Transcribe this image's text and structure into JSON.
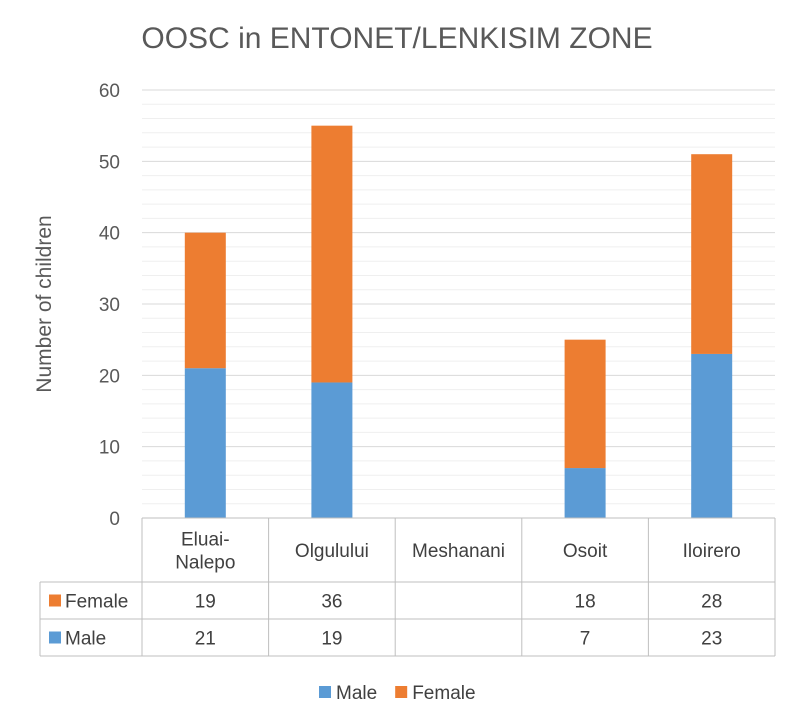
{
  "chart_data": {
    "type": "bar",
    "stacked": true,
    "title": "OOSC in ENTONET/LENKISIM ZONE",
    "ylabel": "Number of children",
    "xlabel": "",
    "ylim": [
      0,
      60
    ],
    "yticks": [
      0,
      10,
      20,
      30,
      40,
      50,
      60
    ],
    "grid": true,
    "legend_position": "bottom",
    "data_table": true,
    "categories": [
      "Eluai-\nNalepo",
      "Olgulului",
      "Meshanani",
      "Osoit",
      "Iloirero"
    ],
    "series": [
      {
        "name": "Male",
        "color": "#5B9BD5",
        "values": [
          21,
          19,
          null,
          7,
          23
        ]
      },
      {
        "name": "Female",
        "color": "#ED7D31",
        "values": [
          19,
          36,
          null,
          18,
          28
        ]
      }
    ]
  }
}
